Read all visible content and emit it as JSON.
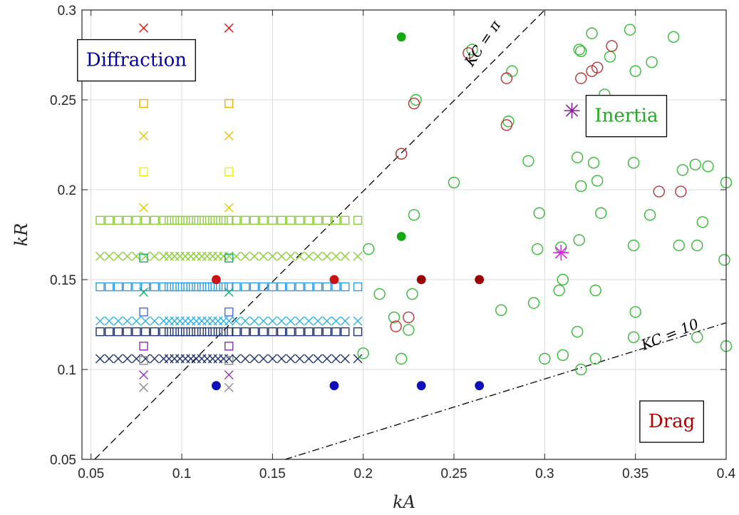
{
  "chart_data": {
    "type": "scatter",
    "xlabel": "kA",
    "ylabel": "kR",
    "xlim": [
      0.045,
      0.4
    ],
    "ylim": [
      0.05,
      0.3
    ],
    "xticks": [
      "0.05",
      "0.1",
      "0.15",
      "0.2",
      "0.25",
      "0.3",
      "0.35",
      "0.4"
    ],
    "xtick_values": [
      0.05,
      0.1,
      0.15,
      0.2,
      0.25,
      0.3,
      0.35,
      0.4
    ],
    "yticks": [
      "0.05",
      "0.1",
      "0.15",
      "0.2",
      "0.25",
      "0.3"
    ],
    "ytick_values": [
      0.05,
      0.1,
      0.15,
      0.2,
      0.25,
      0.3
    ],
    "grid": true,
    "regions": [
      {
        "label": "Diffraction",
        "color": "#0000aa",
        "x": 0.075,
        "y": 0.272
      },
      {
        "label": "Inertia",
        "color": "#1faa1f",
        "x": 0.345,
        "y": 0.241
      },
      {
        "label": "Drag",
        "color": "#aa0000",
        "x": 0.37,
        "y": 0.071
      }
    ],
    "lines": [
      {
        "label": "KC = π",
        "style": "dashed",
        "points": [
          [
            0.052,
            0.05
          ],
          [
            0.3,
            0.3
          ]
        ],
        "label_x": 0.268,
        "label_y": 0.28,
        "label_angle": -56
      },
      {
        "label": "KC = 10",
        "style": "dashdot",
        "points": [
          [
            0.157,
            0.05
          ],
          [
            0.4,
            0.126
          ]
        ],
        "label_x": 0.37,
        "label_y": 0.117,
        "label_angle": -22
      }
    ],
    "series": [
      {
        "marker": "x",
        "color": "#1f3270",
        "y": 0.106,
        "x": [
          0.055,
          0.06,
          0.065,
          0.07,
          0.075,
          0.08,
          0.085,
          0.09,
          0.093,
          0.096,
          0.099,
          0.102,
          0.105,
          0.108,
          0.111,
          0.114,
          0.117,
          0.12,
          0.123,
          0.126,
          0.13,
          0.135,
          0.14,
          0.145,
          0.15,
          0.155,
          0.16,
          0.165,
          0.17,
          0.175,
          0.18,
          0.185,
          0.19,
          0.197
        ]
      },
      {
        "marker": "square",
        "color": "#1f3270",
        "y": 0.121,
        "x": [
          0.055,
          0.06,
          0.065,
          0.07,
          0.075,
          0.08,
          0.085,
          0.09,
          0.093,
          0.096,
          0.099,
          0.102,
          0.105,
          0.108,
          0.111,
          0.114,
          0.117,
          0.12,
          0.123,
          0.126,
          0.13,
          0.135,
          0.14,
          0.145,
          0.15,
          0.155,
          0.16,
          0.165,
          0.17,
          0.175,
          0.18,
          0.185,
          0.19,
          0.197
        ]
      },
      {
        "marker": "x",
        "color": "#2db2e6",
        "y": 0.127,
        "x": [
          0.055,
          0.06,
          0.065,
          0.07,
          0.075,
          0.08,
          0.085,
          0.09,
          0.093,
          0.096,
          0.099,
          0.102,
          0.105,
          0.108,
          0.111,
          0.114,
          0.117,
          0.12,
          0.123,
          0.126,
          0.13,
          0.135,
          0.14,
          0.145,
          0.15,
          0.155,
          0.16,
          0.165,
          0.17,
          0.175,
          0.18,
          0.185,
          0.19,
          0.197
        ]
      },
      {
        "marker": "square",
        "color": "#2d9ae6",
        "y": 0.146,
        "x": [
          0.055,
          0.06,
          0.065,
          0.07,
          0.075,
          0.08,
          0.085,
          0.09,
          0.093,
          0.096,
          0.099,
          0.102,
          0.105,
          0.108,
          0.111,
          0.114,
          0.117,
          0.12,
          0.123,
          0.126,
          0.13,
          0.135,
          0.14,
          0.145,
          0.15,
          0.155,
          0.16,
          0.165,
          0.17,
          0.175,
          0.18,
          0.185,
          0.19,
          0.197
        ]
      },
      {
        "marker": "x",
        "color": "#8ccc3c",
        "y": 0.163,
        "x": [
          0.055,
          0.06,
          0.065,
          0.07,
          0.075,
          0.08,
          0.085,
          0.09,
          0.093,
          0.096,
          0.099,
          0.102,
          0.105,
          0.108,
          0.111,
          0.114,
          0.117,
          0.12,
          0.123,
          0.126,
          0.13,
          0.135,
          0.14,
          0.145,
          0.15,
          0.155,
          0.16,
          0.165,
          0.17,
          0.175,
          0.18,
          0.185,
          0.19,
          0.197
        ]
      },
      {
        "marker": "square",
        "color": "#8ccc3c",
        "y": 0.183,
        "x": [
          0.055,
          0.06,
          0.065,
          0.07,
          0.075,
          0.08,
          0.085,
          0.09,
          0.093,
          0.096,
          0.099,
          0.102,
          0.105,
          0.108,
          0.111,
          0.114,
          0.117,
          0.12,
          0.123,
          0.126,
          0.13,
          0.135,
          0.14,
          0.145,
          0.15,
          0.155,
          0.16,
          0.165,
          0.17,
          0.175,
          0.18,
          0.185,
          0.19,
          0.197
        ]
      },
      {
        "marker": "x",
        "color": "#e6c800",
        "y": 0.19,
        "x": [
          0.079,
          0.126
        ]
      },
      {
        "marker": "square",
        "color": "#f0f000",
        "y": 0.21,
        "x": [
          0.079,
          0.126
        ]
      },
      {
        "marker": "x",
        "color": "#f0c000",
        "y": 0.23,
        "x": [
          0.079,
          0.126
        ]
      },
      {
        "marker": "square",
        "color": "#f0b000",
        "y": 0.248,
        "x": [
          0.079,
          0.126
        ]
      },
      {
        "marker": "x",
        "color": "#dd1111",
        "y": 0.29,
        "x": [
          0.079,
          0.126
        ]
      },
      {
        "marker": "x",
        "color": "#8c8c8c",
        "y": 0.09,
        "x": [
          0.079,
          0.126
        ]
      },
      {
        "marker": "x",
        "color": "#8a2db2",
        "y": 0.097,
        "x": [
          0.079,
          0.126
        ]
      },
      {
        "marker": "square",
        "color": "#8c8c8c",
        "y": 0.105,
        "x": [
          0.079,
          0.126
        ]
      },
      {
        "marker": "square",
        "color": "#8a2db2",
        "y": 0.113,
        "x": [
          0.079,
          0.126
        ]
      },
      {
        "marker": "square",
        "color": "#4d6ad8",
        "y": 0.132,
        "x": [
          0.079,
          0.126
        ]
      },
      {
        "marker": "x",
        "color": "#1aa870",
        "y": 0.143,
        "x": [
          0.079,
          0.126
        ]
      },
      {
        "marker": "square",
        "color": "#1aa870",
        "y": 0.162,
        "x": [
          0.079,
          0.126
        ]
      },
      {
        "marker": "dot",
        "color": "#1010bb",
        "points": [
          [
            0.119,
            0.091
          ],
          [
            0.184,
            0.091
          ],
          [
            0.232,
            0.091
          ],
          [
            0.264,
            0.091
          ]
        ]
      },
      {
        "marker": "dot",
        "color": "#cc1111",
        "points": [
          [
            0.119,
            0.15
          ],
          [
            0.184,
            0.15
          ]
        ]
      },
      {
        "marker": "dot",
        "color": "#990000",
        "points": [
          [
            0.232,
            0.15
          ],
          [
            0.264,
            0.15
          ]
        ]
      },
      {
        "marker": "dot",
        "color": "#11aa11",
        "points": [
          [
            0.221,
            0.285
          ],
          [
            0.221,
            0.174
          ]
        ]
      },
      {
        "marker": "circle",
        "color": "#33bb33",
        "points": [
          [
            0.203,
            0.167
          ],
          [
            0.2,
            0.109
          ],
          [
            0.209,
            0.142
          ],
          [
            0.217,
            0.129
          ],
          [
            0.221,
            0.106
          ],
          [
            0.221,
            0.22
          ],
          [
            0.225,
            0.122
          ],
          [
            0.227,
            0.142
          ],
          [
            0.228,
            0.186
          ],
          [
            0.229,
            0.25
          ],
          [
            0.25,
            0.204
          ],
          [
            0.26,
            0.278
          ],
          [
            0.276,
            0.133
          ],
          [
            0.28,
            0.238
          ],
          [
            0.282,
            0.266
          ],
          [
            0.291,
            0.216
          ],
          [
            0.294,
            0.137
          ],
          [
            0.296,
            0.167
          ],
          [
            0.297,
            0.187
          ],
          [
            0.3,
            0.106
          ],
          [
            0.308,
            0.144
          ],
          [
            0.309,
            0.168
          ],
          [
            0.31,
            0.15
          ],
          [
            0.31,
            0.108
          ],
          [
            0.318,
            0.218
          ],
          [
            0.318,
            0.121
          ],
          [
            0.319,
            0.172
          ],
          [
            0.32,
            0.1
          ],
          [
            0.32,
            0.202
          ],
          [
            0.319,
            0.278
          ],
          [
            0.32,
            0.277
          ],
          [
            0.326,
            0.287
          ],
          [
            0.327,
            0.215
          ],
          [
            0.328,
            0.106
          ],
          [
            0.328,
            0.144
          ],
          [
            0.329,
            0.205
          ],
          [
            0.331,
            0.187
          ],
          [
            0.333,
            0.253
          ],
          [
            0.336,
            0.274
          ],
          [
            0.347,
            0.289
          ],
          [
            0.349,
            0.169
          ],
          [
            0.349,
            0.118
          ],
          [
            0.349,
            0.215
          ],
          [
            0.35,
            0.132
          ],
          [
            0.35,
            0.266
          ],
          [
            0.359,
            0.271
          ],
          [
            0.358,
            0.186
          ],
          [
            0.371,
            0.285
          ],
          [
            0.374,
            0.169
          ],
          [
            0.376,
            0.211
          ],
          [
            0.383,
            0.214
          ],
          [
            0.384,
            0.118
          ],
          [
            0.384,
            0.169
          ],
          [
            0.387,
            0.182
          ],
          [
            0.39,
            0.213
          ],
          [
            0.399,
            0.161
          ],
          [
            0.4,
            0.204
          ],
          [
            0.4,
            0.113
          ]
        ]
      },
      {
        "marker": "circle",
        "color": "#b83333",
        "points": [
          [
            0.218,
            0.124
          ],
          [
            0.221,
            0.22
          ],
          [
            0.225,
            0.129
          ],
          [
            0.228,
            0.248
          ],
          [
            0.258,
            0.276
          ],
          [
            0.279,
            0.236
          ],
          [
            0.279,
            0.262
          ],
          [
            0.32,
            0.262
          ],
          [
            0.326,
            0.266
          ],
          [
            0.329,
            0.268
          ],
          [
            0.337,
            0.28
          ],
          [
            0.363,
            0.199
          ],
          [
            0.375,
            0.199
          ]
        ]
      },
      {
        "marker": "star",
        "color": "#8a1a9a",
        "points": [
          [
            0.315,
            0.244
          ]
        ]
      },
      {
        "marker": "star",
        "color": "#e61aef",
        "points": [
          [
            0.309,
            0.165
          ]
        ]
      }
    ]
  }
}
